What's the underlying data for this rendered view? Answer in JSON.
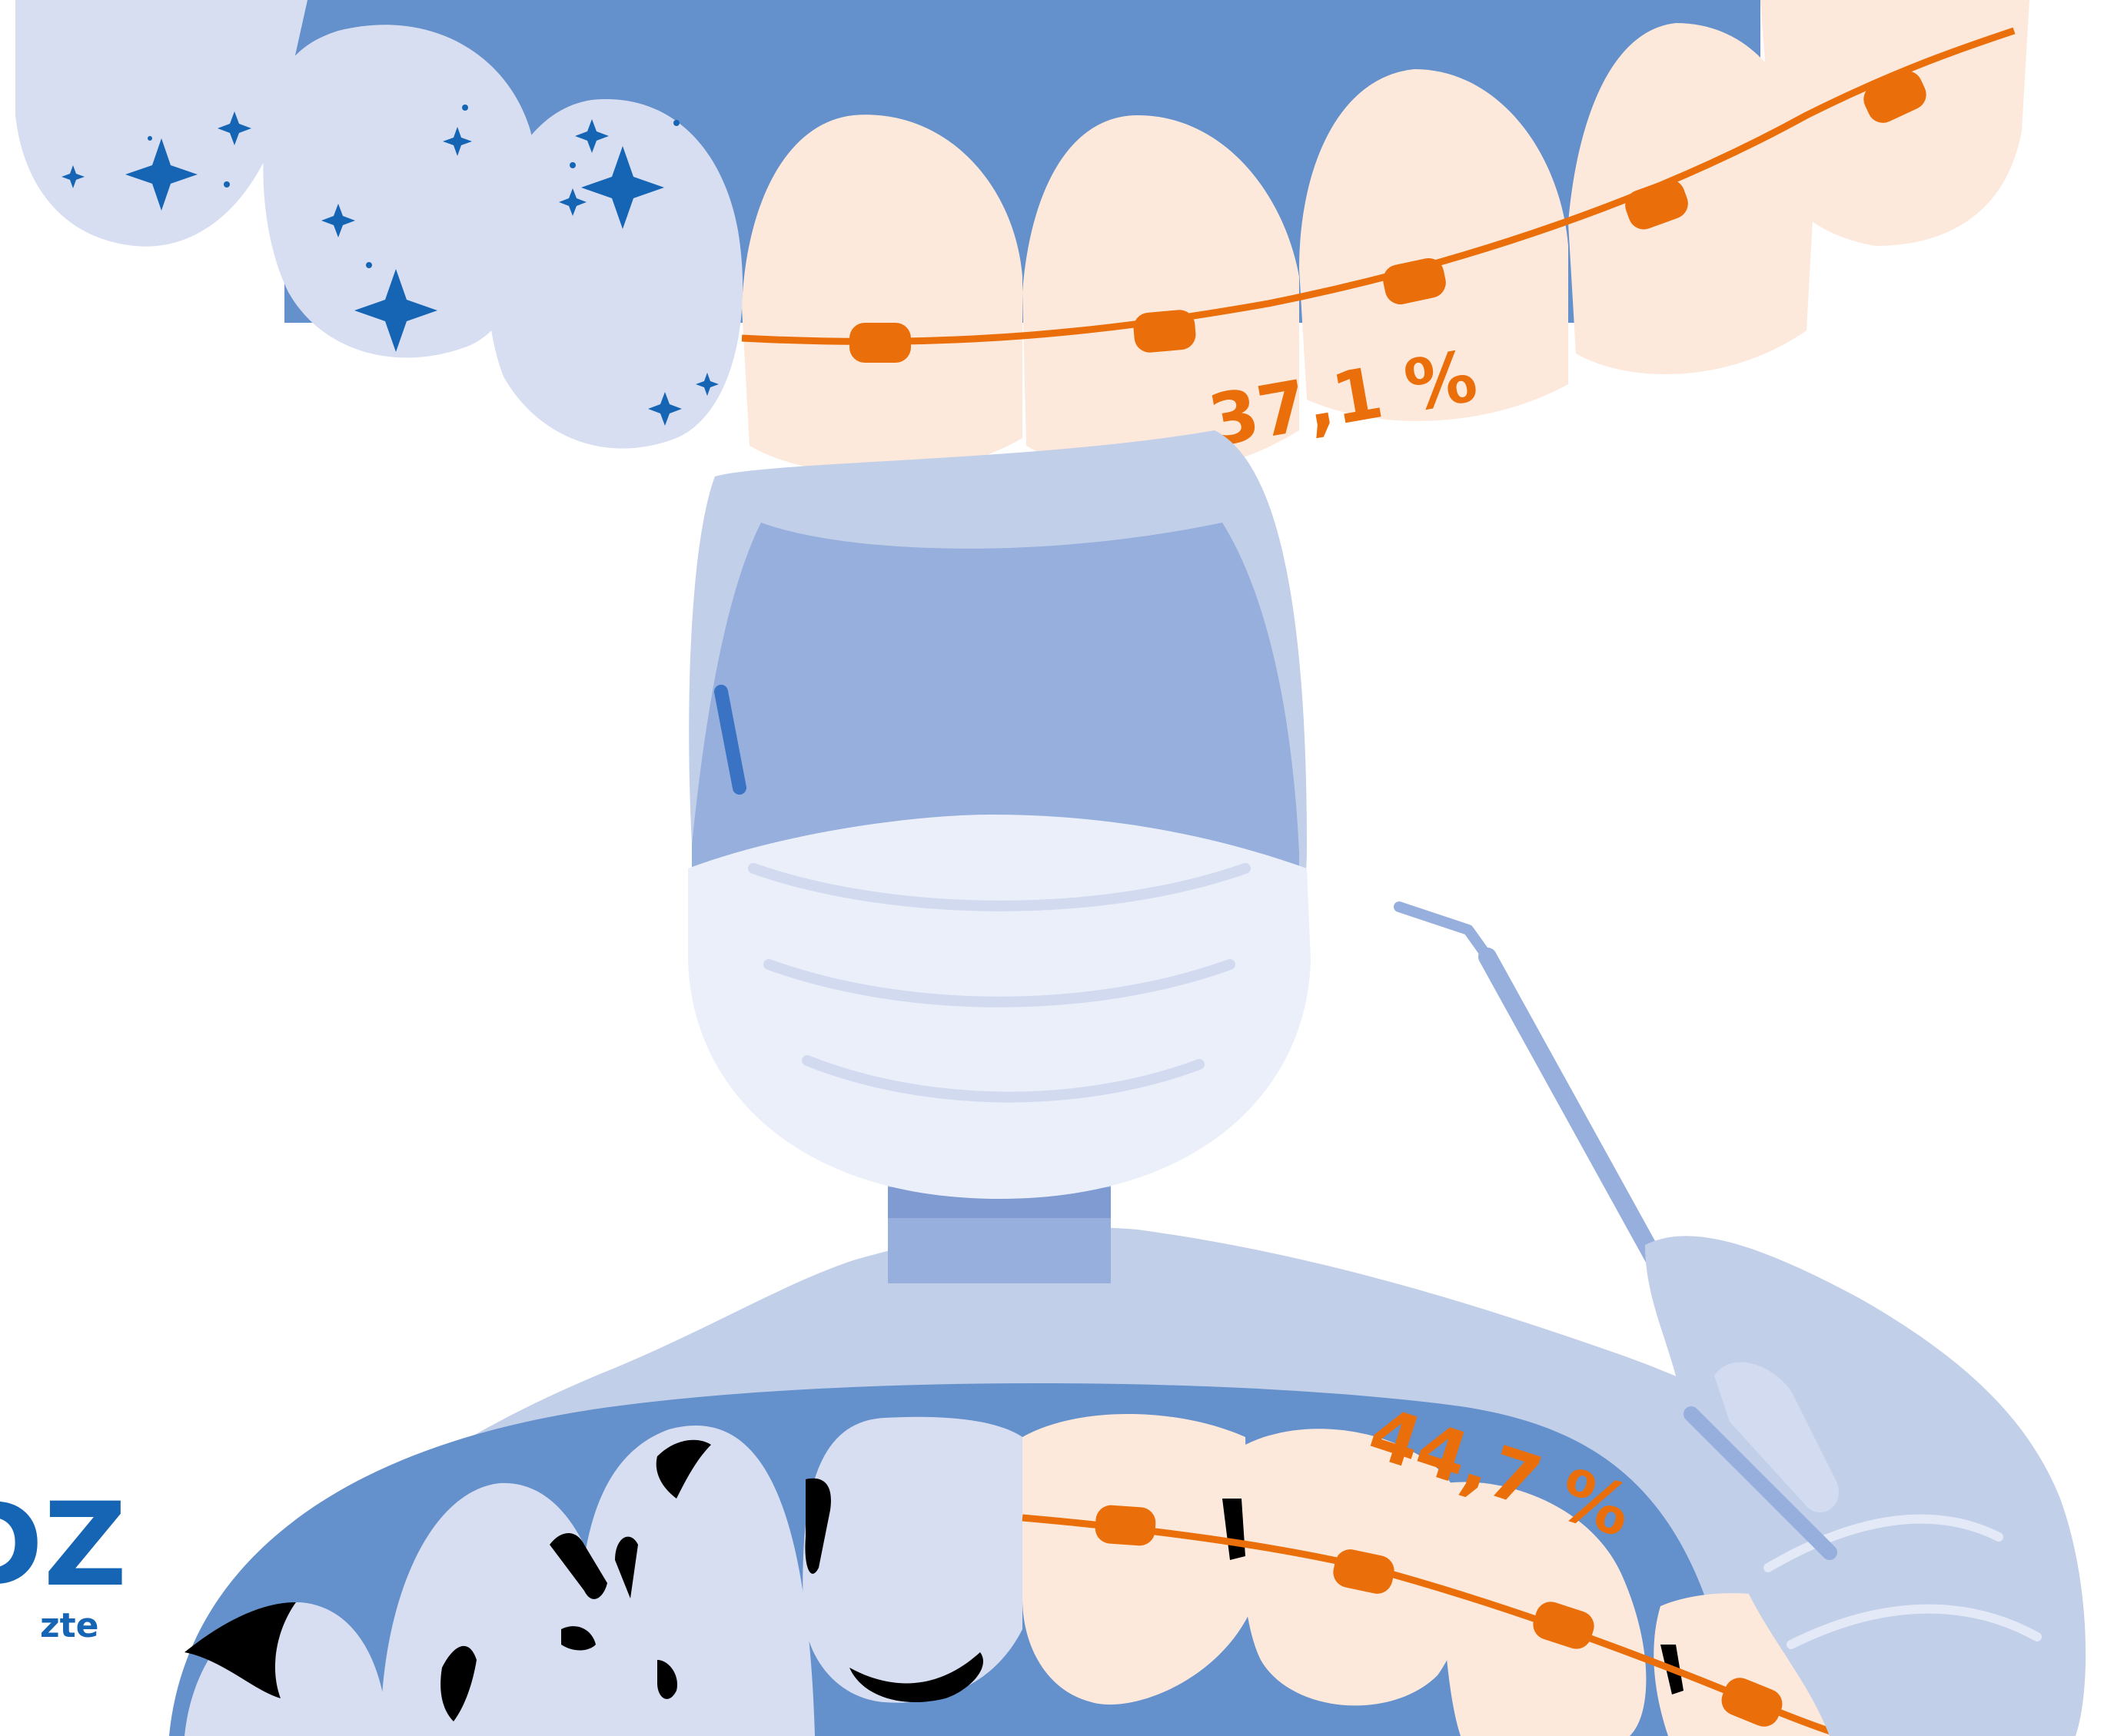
{
  "stats": {
    "upper_value": "37,1 %",
    "lower_value": "44,7 %"
  },
  "logo": {
    "text": "DZ",
    "sub": "zte"
  },
  "colors": {
    "background": "#ffffff",
    "gum_blue": "#6490cc",
    "tooth_light": "#d7def1",
    "tooth_peach": "#fde9db",
    "face_blue": "#96afdc",
    "mask": "#ebeffa",
    "brace_orange": "#ea6f0a",
    "sparkle": "#1565b4",
    "logo_blue": "#1565b4",
    "decay": "#000000"
  }
}
